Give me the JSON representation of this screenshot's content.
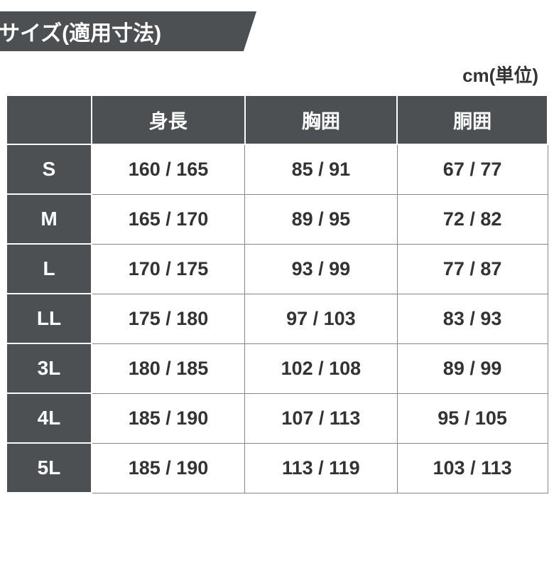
{
  "header": {
    "title": "サイズ(適用寸法)"
  },
  "unit_label": "cm(単位)",
  "table": {
    "columns": [
      "身長",
      "胸囲",
      "胴囲"
    ],
    "col_widths": [
      "120px",
      "215px",
      "215px",
      "215px"
    ],
    "header_bg": "#4d5053",
    "header_fg": "#ffffff",
    "cell_fg": "#333333",
    "cell_border": "#888888",
    "font_size_header": 27,
    "font_size_cell": 27,
    "rows": [
      {
        "size": "S",
        "values": [
          "160 / 165",
          "85 / 91",
          "67 / 77"
        ]
      },
      {
        "size": "M",
        "values": [
          "165 / 170",
          "89 / 95",
          "72 / 82"
        ]
      },
      {
        "size": "L",
        "values": [
          "170 / 175",
          "93 / 99",
          "77 / 87"
        ]
      },
      {
        "size": "LL",
        "values": [
          "175 / 180",
          "97 / 103",
          "83 / 93"
        ]
      },
      {
        "size": "3L",
        "values": [
          "180 / 185",
          "102 / 108",
          "89 / 99"
        ]
      },
      {
        "size": "4L",
        "values": [
          "185 / 190",
          "107 / 113",
          "95 / 105"
        ]
      },
      {
        "size": "5L",
        "values": [
          "185 / 190",
          "113 / 119",
          "103 / 113"
        ]
      }
    ]
  },
  "colors": {
    "header_bar_bg": "#4d5053",
    "header_bar_fg": "#ffffff",
    "page_bg": "#ffffff"
  }
}
